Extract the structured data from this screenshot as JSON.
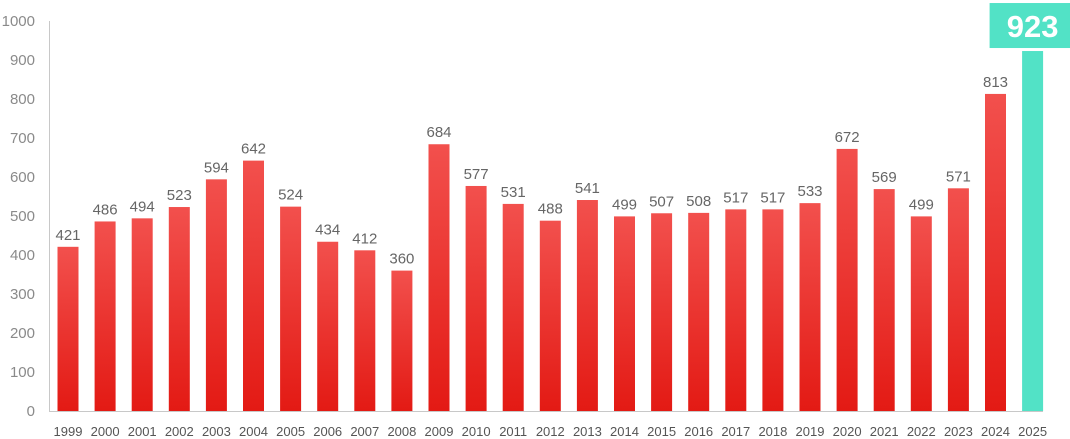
{
  "chart_data": {
    "type": "bar",
    "title": "",
    "xlabel": "",
    "ylabel": "",
    "ylim": [
      0,
      1000
    ],
    "yticks": [
      0,
      100,
      200,
      300,
      400,
      500,
      600,
      700,
      800,
      900,
      1000
    ],
    "grid": false,
    "categories": [
      "1999",
      "2000",
      "2001",
      "2002",
      "2003",
      "2004",
      "2005",
      "2006",
      "2007",
      "2008",
      "2009",
      "2010",
      "2011",
      "2012",
      "2013",
      "2014",
      "2015",
      "2016",
      "2017",
      "2018",
      "2019",
      "2020",
      "2021",
      "2022",
      "2023",
      "2024",
      "2025"
    ],
    "values": [
      421,
      486,
      494,
      523,
      594,
      642,
      524,
      434,
      412,
      360,
      684,
      577,
      531,
      488,
      541,
      499,
      507,
      508,
      517,
      517,
      533,
      672,
      569,
      499,
      571,
      813,
      923
    ],
    "highlight_category": "2025",
    "colors": {
      "bar_top": "#f2504d",
      "bar_bottom": "#e31a14",
      "highlight": "#52e2c6",
      "axis": "#c8c8c8"
    }
  }
}
